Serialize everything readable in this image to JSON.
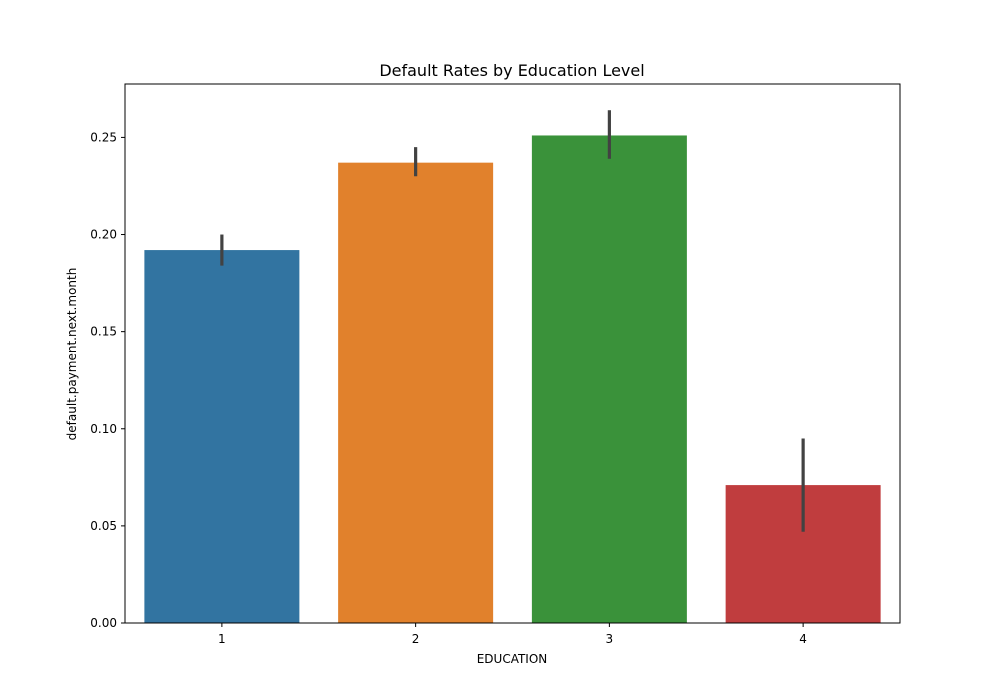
{
  "chart_data": {
    "type": "bar",
    "title": "Default Rates by Education Level",
    "xlabel": "EDUCATION",
    "ylabel": "default.payment.next.month",
    "categories": [
      "1",
      "2",
      "3",
      "4"
    ],
    "values": [
      0.192,
      0.237,
      0.251,
      0.071
    ],
    "error_bars": [
      [
        0.184,
        0.2
      ],
      [
        0.23,
        0.245
      ],
      [
        0.239,
        0.264
      ],
      [
        0.047,
        0.095
      ]
    ],
    "colors": [
      "#3274a1",
      "#e1812c",
      "#3a923a",
      "#c03d3e"
    ],
    "ylim": [
      0,
      0.2775
    ],
    "yticks": [
      "0.00",
      "0.05",
      "0.10",
      "0.15",
      "0.20",
      "0.25"
    ],
    "grid": false,
    "legend": null
  }
}
